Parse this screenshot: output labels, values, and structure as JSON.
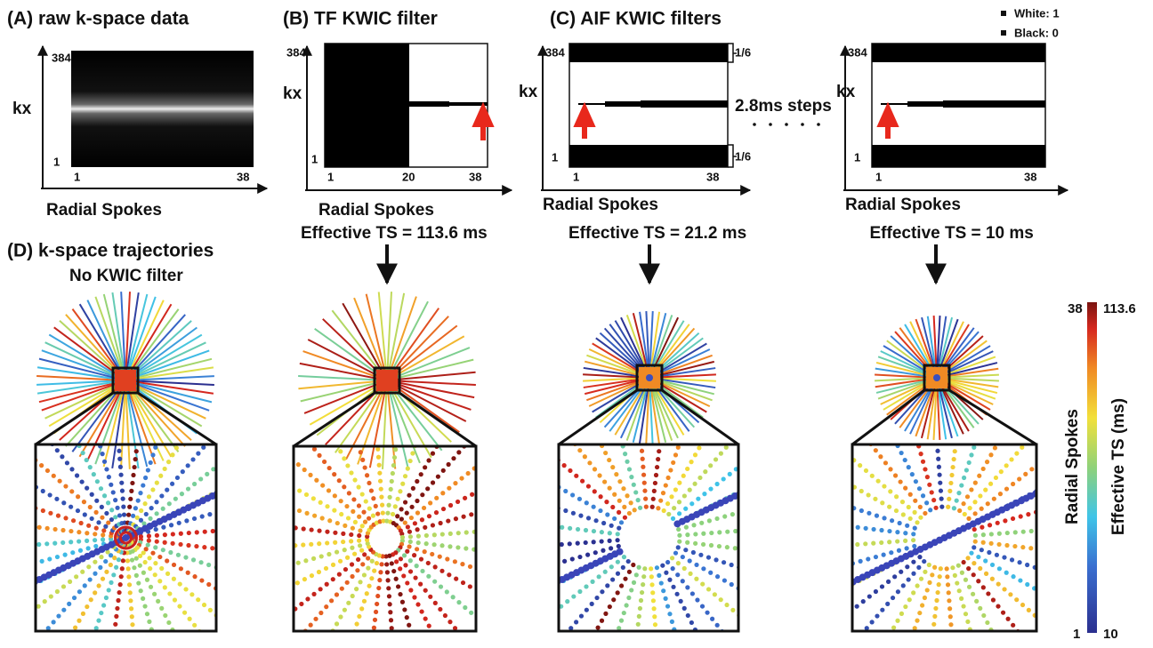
{
  "panel_a": {
    "label": "(A) raw k-space data",
    "y_axis": "kx",
    "y_max": "384",
    "y_min": "1",
    "x_min": "1",
    "x_max": "38",
    "x_axis": "Radial Spokes"
  },
  "panel_b": {
    "label": "(B) TF KWIC filter",
    "y_axis": "kx",
    "y_max": "384",
    "y_min": "1",
    "x_min": "1",
    "x_mid": "20",
    "x_max": "38",
    "x_axis": "Radial Spokes",
    "effective_ts": "Effective TS = 113.6 ms"
  },
  "panel_c": {
    "label": "(C) AIF KWIC filters",
    "legend": [
      "White: 1",
      "Black: 0"
    ],
    "step_note": "2.8ms steps",
    "filters": [
      {
        "y_axis": "kx",
        "y_max": "384",
        "y_min": "1",
        "x_min": "1",
        "x_max": "38",
        "band_top": "1/6",
        "band_bottom": "1/6",
        "x_axis": "Radial Spokes",
        "effective_ts": "Effective TS = 21.2 ms"
      },
      {
        "y_axis": "kx",
        "y_max": "384",
        "y_min": "1",
        "x_min": "1",
        "x_max": "38",
        "x_axis": "Radial Spokes",
        "effective_ts": "Effective TS = 10 ms"
      }
    ]
  },
  "panel_d": {
    "label": "(D) k-space trajectories",
    "subtitle": "No KWIC filter"
  },
  "colorbar": {
    "left_title": "Radial Spokes",
    "right_title": "Effective TS (ms)",
    "left_max": "38",
    "left_min": "1",
    "right_max": "113.6",
    "right_min": "10"
  }
}
